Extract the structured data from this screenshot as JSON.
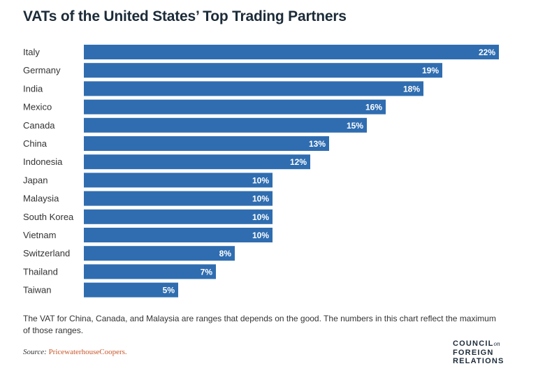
{
  "chart_data": {
    "type": "bar",
    "orientation": "horizontal",
    "title": "VATs of the United States’ Top Trading Partners",
    "categories": [
      "Italy",
      "Germany",
      "India",
      "Mexico",
      "Canada",
      "China",
      "Indonesia",
      "Japan",
      "Malaysia",
      "South Korea",
      "Vietnam",
      "Switzerland",
      "Thailand",
      "Taiwan"
    ],
    "values": [
      22,
      19,
      18,
      16,
      15,
      13,
      12,
      10,
      10,
      10,
      10,
      8,
      7,
      5
    ],
    "value_suffix": "%",
    "xlim": [
      0,
      22
    ],
    "grid": false,
    "bar_color": "#2f6db0"
  },
  "footnote": "The VAT for China, Canada, and Malaysia are ranges that depends on the good. The numbers in this chart reflect the maximum of those ranges.",
  "source": {
    "prefix": "Source:",
    "name": "PricewaterhouseCoopers."
  },
  "logo": {
    "line1": "COUNCIL",
    "line1_suffix": "on",
    "line2": "FOREIGN",
    "line3": "RELATIONS"
  }
}
